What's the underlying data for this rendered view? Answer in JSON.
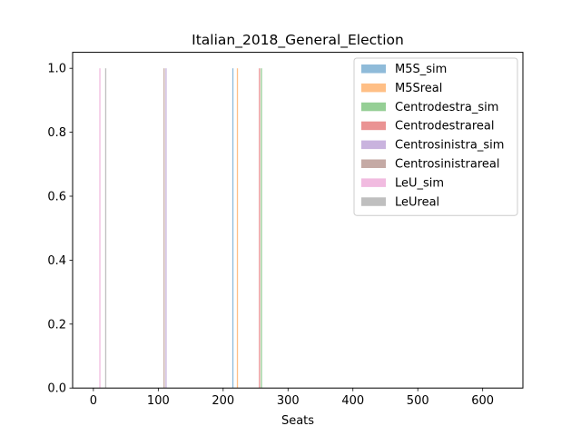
{
  "chart_data": {
    "type": "bar",
    "title": "Italian_2018_General_Election",
    "xlabel": "Seats",
    "ylabel": "",
    "xlim": [
      -32,
      662
    ],
    "ylim": [
      0,
      1.05
    ],
    "xticks": [
      0,
      100,
      200,
      300,
      400,
      500,
      600
    ],
    "yticks": [
      0.0,
      0.2,
      0.4,
      0.6,
      0.8,
      1.0
    ],
    "ytick_labels": [
      "0.0",
      "0.2",
      "0.4",
      "0.6",
      "0.8",
      "1.0"
    ],
    "grid": false,
    "legend_position": "top-right",
    "series": [
      {
        "name": "M5S_sim",
        "x": 215,
        "value": 1.0,
        "color": "#1f77b4"
      },
      {
        "name": "M5Sreal",
        "x": 222,
        "value": 1.0,
        "color": "#ff7f0e"
      },
      {
        "name": "Centrodestra_sim",
        "x": 259,
        "value": 1.0,
        "color": "#2ca02c"
      },
      {
        "name": "Centrodestrareal",
        "x": 256,
        "value": 1.0,
        "color": "#d62728"
      },
      {
        "name": "Centrosinistra_sim",
        "x": 112,
        "value": 1.0,
        "color": "#9467bd"
      },
      {
        "name": "Centrosinistrareal",
        "x": 109,
        "value": 1.0,
        "color": "#8c564b"
      },
      {
        "name": "LeU_sim",
        "x": 10,
        "value": 1.0,
        "color": "#e377c2"
      },
      {
        "name": "LeUreal",
        "x": 19,
        "value": 1.0,
        "color": "#7f7f7f"
      }
    ]
  }
}
